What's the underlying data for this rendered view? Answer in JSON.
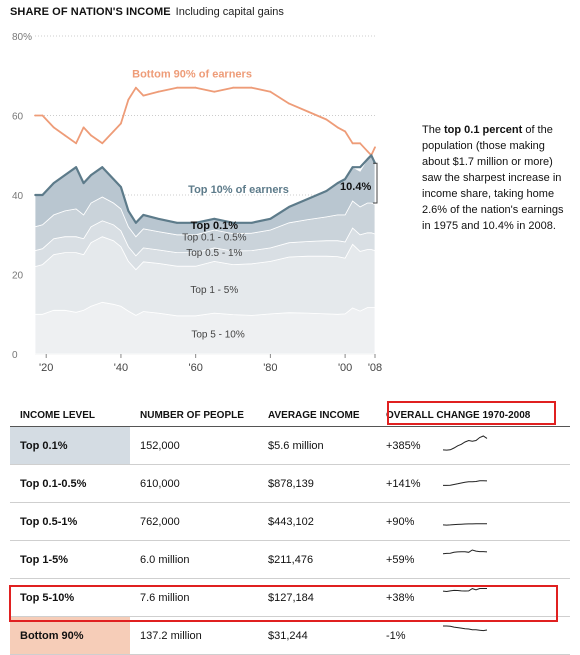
{
  "header": {
    "title": "SHARE OF NATION'S INCOME",
    "subtitle": "Including capital gains"
  },
  "annotation": {
    "bold": "top 0.1 percent",
    "pre": "The ",
    "rest": " of the population (those making about $1.7 million or more) saw the sharpest increase in income share, taking home 2.6% of the nation's earnings in 1975 and 10.4% in 2008."
  },
  "colors": {
    "bottom90": "#ee9c78",
    "top10": "#5d7b8a",
    "top01_band": "#b9c6d0",
    "top01_05_band": "#cad3da",
    "top05_1_band": "#d9dfe4",
    "top1_5_band": "#e5e9ec",
    "top5_10_band": "#eef0f2",
    "grid": "#cccccc",
    "highlight": "#e02020",
    "row_top01": "#d4dce3",
    "row_bottom90": "#f6cdb8"
  },
  "chart_data": {
    "type": "area",
    "title": "SHARE OF NATION'S INCOME",
    "subtitle": "Including capital gains",
    "xlim": [
      1917,
      2008
    ],
    "ylim": [
      0,
      80
    ],
    "y_ticks": [
      0,
      20,
      40,
      60,
      80
    ],
    "y_tick_labels": [
      "0",
      "20",
      "40",
      "60",
      "80%"
    ],
    "x_ticks": [
      1920,
      1940,
      1960,
      1980,
      2000,
      2008
    ],
    "x_tick_labels": [
      "'20",
      "'40",
      "'60",
      "'80",
      "'00",
      "'08"
    ],
    "grid": true,
    "x": [
      1917,
      1919,
      1922,
      1925,
      1928,
      1930,
      1932,
      1935,
      1938,
      1940,
      1942,
      1944,
      1946,
      1950,
      1955,
      1960,
      1965,
      1970,
      1975,
      1980,
      1985,
      1990,
      1995,
      1998,
      2000,
      2002,
      2004,
      2006,
      2007,
      2008
    ],
    "series": [
      {
        "name": "Bottom 90% of earners",
        "values": [
          60,
          60,
          57,
          55,
          53,
          57,
          55,
          53,
          56,
          58,
          64,
          67,
          65,
          66,
          67,
          67,
          66,
          67,
          67,
          66,
          63,
          61,
          59,
          57,
          56,
          53,
          53,
          51,
          50,
          52
        ]
      },
      {
        "name": "Top 10% of earners",
        "values": [
          40,
          40,
          43,
          45,
          47,
          43,
          45,
          47,
          44,
          42,
          36,
          33,
          35,
          34,
          33,
          33,
          34,
          33,
          33,
          34,
          37,
          39,
          41,
          43,
          44,
          47,
          47,
          49,
          50,
          48
        ]
      }
    ],
    "bands": [
      {
        "name": "Top 0.1%",
        "values": [
          8,
          7.5,
          8,
          9,
          10.5,
          8,
          7,
          7.5,
          6,
          5.5,
          4,
          3.5,
          3.5,
          3.2,
          3,
          3,
          2.8,
          2.7,
          2.6,
          2.8,
          4,
          5.5,
          6.5,
          8,
          9,
          8.5,
          9,
          11,
          12,
          10.4
        ]
      },
      {
        "name": "Top 0.1 - 0.5%",
        "values": [
          6,
          6,
          6,
          6.5,
          7,
          6,
          6,
          6,
          5.5,
          5.5,
          5,
          4.8,
          4.8,
          4.6,
          4.5,
          4.5,
          4.5,
          4.4,
          4.4,
          4.5,
          5,
          5.5,
          6,
          6.5,
          6.8,
          6.8,
          7,
          7.5,
          7.5,
          7.4
        ]
      },
      {
        "name": "Top 0.5 - 1%",
        "values": [
          4,
          4,
          4,
          4,
          4,
          4,
          4,
          4,
          4,
          4,
          3.7,
          3.5,
          3.5,
          3.4,
          3.4,
          3.4,
          3.4,
          3.4,
          3.3,
          3.4,
          3.6,
          3.7,
          3.9,
          4,
          4.1,
          4.1,
          4.2,
          4.2,
          4.2,
          4.2
        ]
      },
      {
        "name": "Top 1 - 5%",
        "values": [
          12,
          12.5,
          14,
          14.5,
          15,
          14,
          16,
          16.5,
          16,
          15,
          12.5,
          11.5,
          12.5,
          12.5,
          12.5,
          12.5,
          13,
          12.6,
          13,
          13.2,
          14,
          14.3,
          14.5,
          14.5,
          14,
          16,
          15,
          14.6,
          14.6,
          14.3
        ]
      },
      {
        "name": "Top 5 - 10%",
        "values": [
          10,
          10,
          11,
          11,
          10.5,
          11,
          12,
          13,
          12.5,
          12,
          10.8,
          9.7,
          10.7,
          10.3,
          9.6,
          9.6,
          10.3,
          9.9,
          9.7,
          10.1,
          10.4,
          10.3,
          10.1,
          10,
          10.1,
          11.6,
          10.8,
          11.7,
          11.7,
          11.7
        ]
      }
    ],
    "labels": {
      "bottom90": "Bottom 90% of earners",
      "top10": "Top 10% of earners",
      "top01": "Top 0.1%",
      "top01_05": "Top 0.1 - 0.5%",
      "top05_1": "Top 0.5 - 1%",
      "top1_5": "Top 1 - 5%",
      "top5_10": "Top 5 - 10%",
      "value_2008": "10.4%"
    }
  },
  "table": {
    "headers": [
      "INCOME LEVEL",
      "NUMBER OF PEOPLE",
      "AVERAGE INCOME",
      "OVERALL CHANGE 1970-2008"
    ],
    "rows": [
      {
        "level": "Top 0.1%",
        "people": "152,000",
        "avg": "$5.6 million",
        "change": "+385%",
        "trend": [
          2.7,
          2.6,
          2.8,
          4,
          5.5,
          6.5,
          8,
          9,
          8.5,
          9,
          11,
          12,
          10.4
        ]
      },
      {
        "level": "Top 0.1-0.5%",
        "people": "610,000",
        "avg": "$878,139",
        "change": "+141%",
        "trend": [
          4.4,
          4.4,
          4.5,
          5,
          5.5,
          6,
          6.5,
          6.8,
          6.8,
          7,
          7.5,
          7.5,
          7.4
        ]
      },
      {
        "level": "Top 0.5-1%",
        "people": "762,000",
        "avg": "$443,102",
        "change": "+90%",
        "trend": [
          3.4,
          3.3,
          3.4,
          3.6,
          3.7,
          3.9,
          4,
          4.1,
          4.1,
          4.2,
          4.2,
          4.2,
          4.2
        ]
      },
      {
        "level": "Top 1-5%",
        "people": "6.0 million",
        "avg": "$211,476",
        "change": "+59%",
        "trend": [
          12.6,
          13,
          13.2,
          14,
          14.3,
          14.5,
          14.5,
          14,
          16,
          15,
          14.6,
          14.6,
          14.3
        ]
      },
      {
        "level": "Top 5-10%",
        "people": "7.6 million",
        "avg": "$127,184",
        "change": "+38%",
        "trend": [
          9.9,
          9.7,
          10.1,
          10.4,
          10.3,
          10.1,
          10,
          10.1,
          11.6,
          10.8,
          11.7,
          11.7,
          11.7
        ]
      },
      {
        "level": "Bottom 90%",
        "people": "137.2 million",
        "avg": "$31,244",
        "change": "-1%",
        "trend": [
          67,
          67,
          66,
          63,
          61,
          59,
          57,
          56,
          53,
          53,
          51,
          50,
          52
        ]
      }
    ]
  }
}
